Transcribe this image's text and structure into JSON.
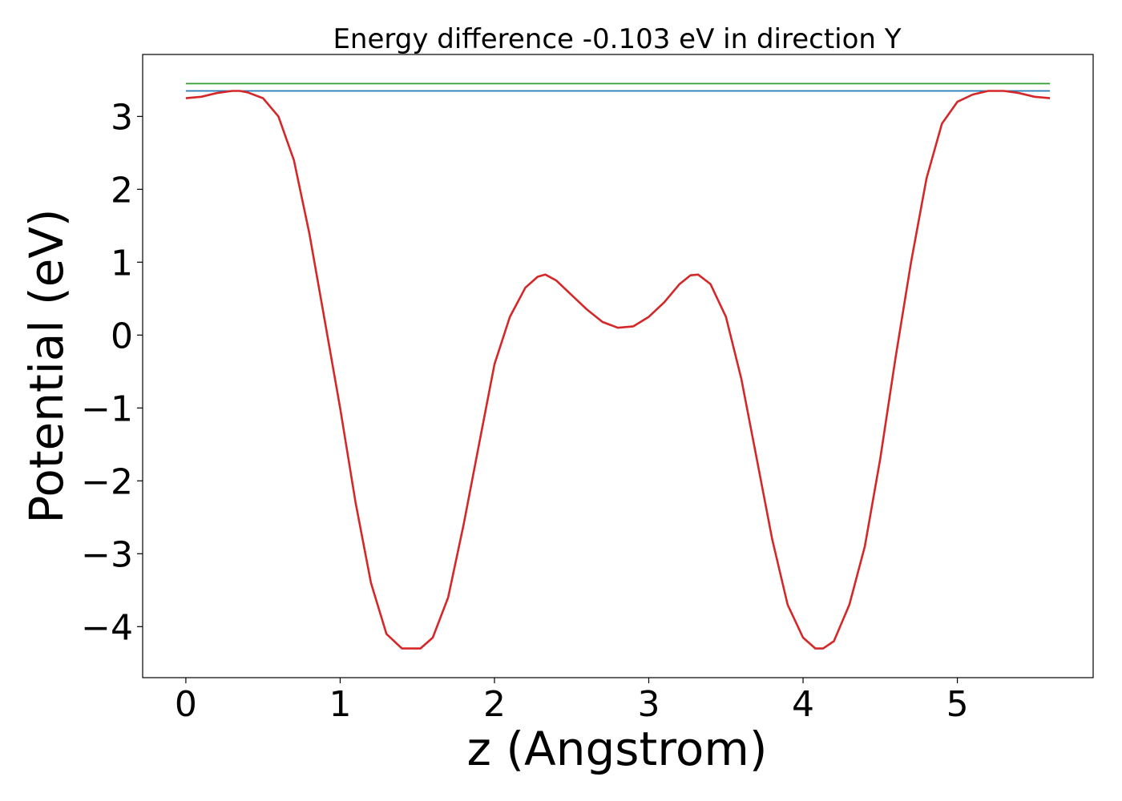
{
  "chart_data": {
    "type": "line",
    "title": "Energy difference -0.103 eV in direction Y",
    "xlabel": "z (Angstrom)",
    "ylabel": "Potential (eV)",
    "xlim": [
      -0.28,
      5.88
    ],
    "ylim": [
      -4.7,
      3.85
    ],
    "xticks": [
      0,
      1,
      2,
      3,
      4,
      5
    ],
    "xtick_labels": [
      "0",
      "1",
      "2",
      "3",
      "4",
      "5"
    ],
    "yticks": [
      3,
      2,
      1,
      0,
      -1,
      -2,
      -3,
      -4
    ],
    "ytick_labels": [
      "3",
      "2",
      "1",
      "0",
      "−1",
      "−2",
      "−3",
      "−4"
    ],
    "grid": false,
    "series": [
      {
        "color": "#2ca02c",
        "x": [
          0.0,
          5.6
        ],
        "y": [
          3.45,
          3.45
        ]
      },
      {
        "color": "#1f77b4",
        "x": [
          0.0,
          5.6
        ],
        "y": [
          3.35,
          3.35
        ]
      },
      {
        "color": "#d62728",
        "x": [
          0.0,
          0.1,
          0.2,
          0.3,
          0.35,
          0.4,
          0.5,
          0.6,
          0.7,
          0.8,
          0.9,
          1.0,
          1.1,
          1.2,
          1.3,
          1.4,
          1.47,
          1.52,
          1.6,
          1.7,
          1.8,
          1.9,
          2.0,
          2.1,
          2.2,
          2.28,
          2.33,
          2.4,
          2.5,
          2.6,
          2.7,
          2.8,
          2.9,
          3.0,
          3.1,
          3.2,
          3.27,
          3.32,
          3.4,
          3.5,
          3.6,
          3.7,
          3.8,
          3.9,
          4.0,
          4.08,
          4.13,
          4.2,
          4.3,
          4.4,
          4.5,
          4.6,
          4.7,
          4.8,
          4.9,
          5.0,
          5.1,
          5.2,
          5.25,
          5.3,
          5.4,
          5.5,
          5.6
        ],
        "y": [
          3.25,
          3.27,
          3.32,
          3.35,
          3.35,
          3.33,
          3.25,
          3.0,
          2.4,
          1.4,
          0.2,
          -1.0,
          -2.3,
          -3.4,
          -4.1,
          -4.3,
          -4.3,
          -4.3,
          -4.15,
          -3.6,
          -2.6,
          -1.5,
          -0.4,
          0.25,
          0.65,
          0.8,
          0.83,
          0.75,
          0.55,
          0.35,
          0.18,
          0.1,
          0.12,
          0.25,
          0.45,
          0.7,
          0.82,
          0.83,
          0.7,
          0.25,
          -0.6,
          -1.7,
          -2.8,
          -3.7,
          -4.15,
          -4.3,
          -4.3,
          -4.2,
          -3.7,
          -2.9,
          -1.7,
          -0.3,
          1.0,
          2.15,
          2.9,
          3.2,
          3.3,
          3.35,
          3.35,
          3.35,
          3.32,
          3.27,
          3.25
        ]
      }
    ]
  }
}
